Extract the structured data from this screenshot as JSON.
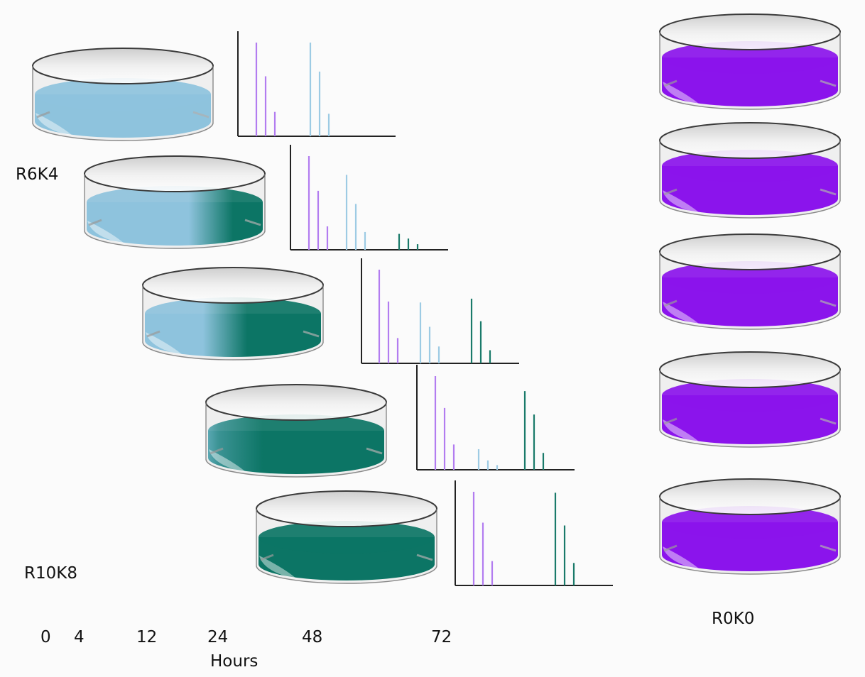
{
  "labels": {
    "r6k4": "R6K4",
    "r10k8": "R10K8",
    "r0k0": "R0K0",
    "xlabel": "Hours"
  },
  "time_ticks": [
    "0",
    "4",
    "12",
    "24",
    "48",
    "72"
  ],
  "colors": {
    "light": "#8ec3dd",
    "dark": "#0c7565",
    "violet": "#8b14ec",
    "violet_line": "#b27cf0",
    "blue_line": "#9dcbe4",
    "teal_line": "#1a7a6a",
    "axis": "#222222"
  },
  "left_dishes": [
    {
      "dark_fraction": 0.0
    },
    {
      "dark_fraction": 0.3
    },
    {
      "dark_fraction": 0.55
    },
    {
      "dark_fraction": 0.82
    },
    {
      "dark_fraction": 1.0
    }
  ],
  "right_dishes_count": 5,
  "chart_data": [
    {
      "type": "bar",
      "series": [
        {
          "color": "violet",
          "values": [
            1.0,
            0.64,
            0.26
          ]
        },
        {
          "color": "blue",
          "values": [
            1.0,
            0.69,
            0.24
          ]
        }
      ]
    },
    {
      "type": "bar",
      "series": [
        {
          "color": "violet",
          "values": [
            1.0,
            0.63,
            0.25
          ]
        },
        {
          "color": "blue",
          "values": [
            0.8,
            0.49,
            0.19
          ]
        },
        {
          "color": "teal",
          "values": [
            0.17,
            0.12,
            0.06
          ]
        }
      ]
    },
    {
      "type": "bar",
      "series": [
        {
          "color": "violet",
          "values": [
            1.0,
            0.66,
            0.27
          ]
        },
        {
          "color": "blue",
          "values": [
            0.65,
            0.39,
            0.18
          ]
        },
        {
          "color": "teal",
          "values": [
            0.69,
            0.45,
            0.14
          ]
        }
      ]
    },
    {
      "type": "bar",
      "series": [
        {
          "color": "violet",
          "values": [
            1.0,
            0.66,
            0.27
          ]
        },
        {
          "color": "blue",
          "values": [
            0.22,
            0.1,
            0.05
          ]
        },
        {
          "color": "teal",
          "values": [
            0.84,
            0.59,
            0.18
          ]
        }
      ]
    },
    {
      "type": "bar",
      "series": [
        {
          "color": "violet",
          "values": [
            1.0,
            0.67,
            0.26
          ]
        },
        {
          "color": "teal",
          "values": [
            0.99,
            0.64,
            0.24
          ]
        }
      ]
    }
  ]
}
